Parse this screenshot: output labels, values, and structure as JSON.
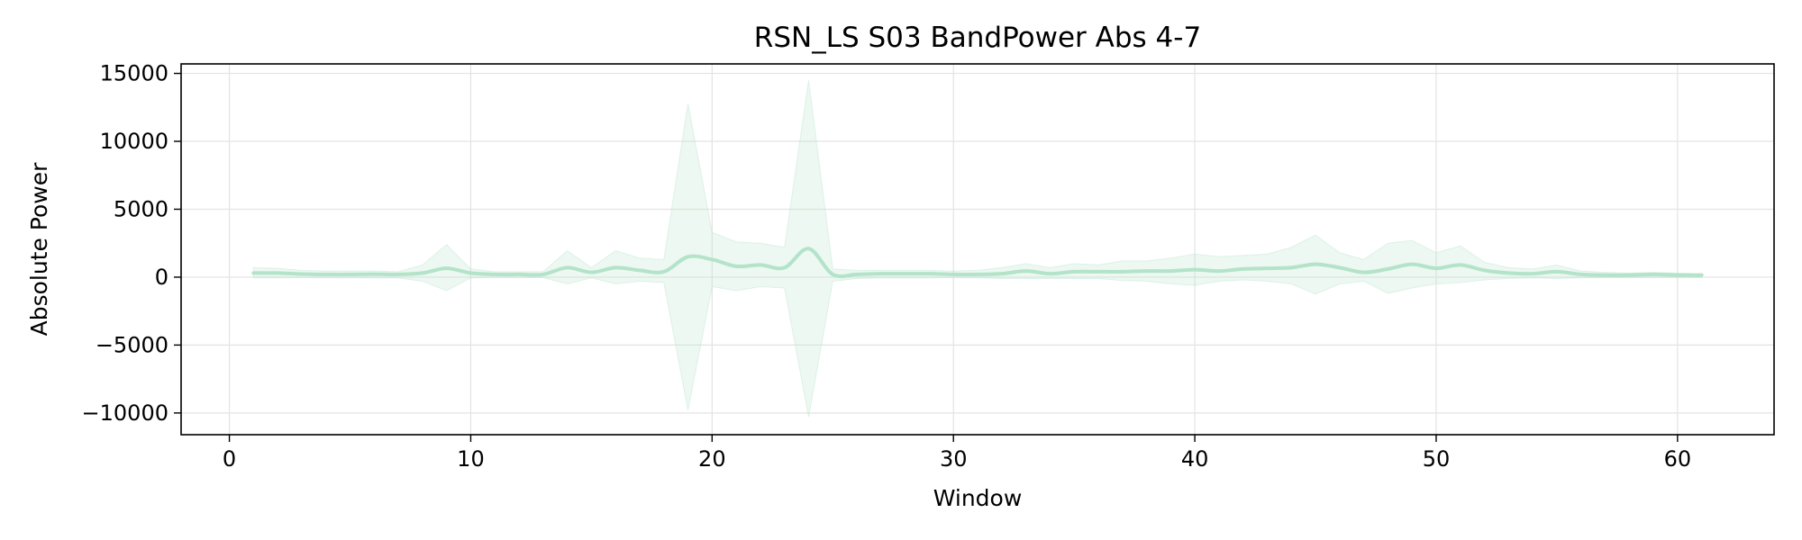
{
  "chart_data": {
    "type": "line",
    "title": "RSN_LS S03 BandPower Abs 4-7",
    "xlabel": "Window",
    "ylabel": "Absolute Power",
    "xlim": [
      -2,
      64
    ],
    "ylim": [
      -11600,
      15700
    ],
    "x_ticks": [
      0,
      10,
      20,
      30,
      40,
      50,
      60
    ],
    "y_ticks": [
      -10000,
      -5000,
      0,
      5000,
      10000,
      15000
    ],
    "x_tick_labels": [
      "0",
      "10",
      "20",
      "30",
      "40",
      "50",
      "60"
    ],
    "y_tick_labels": [
      "−10000",
      "−5000",
      "0",
      "5000",
      "10000",
      "15000"
    ],
    "grid": true,
    "series": [
      {
        "color": "#b3e3c9",
        "band_color": "#b3e3c9",
        "x": [
          1,
          2,
          3,
          4,
          5,
          6,
          7,
          8,
          9,
          10,
          11,
          12,
          13,
          14,
          15,
          16,
          17,
          18,
          19,
          20,
          21,
          22,
          23,
          24,
          25,
          26,
          27,
          28,
          29,
          30,
          31,
          32,
          33,
          34,
          35,
          36,
          37,
          38,
          39,
          40,
          41,
          42,
          43,
          44,
          45,
          46,
          47,
          48,
          49,
          50,
          51,
          52,
          53,
          54,
          55,
          56,
          57,
          58,
          59,
          60,
          61
        ],
        "mean": [
          300,
          300,
          230,
          200,
          200,
          220,
          200,
          300,
          650,
          300,
          200,
          200,
          200,
          700,
          350,
          700,
          500,
          400,
          1500,
          1300,
          800,
          900,
          700,
          2100,
          200,
          200,
          250,
          250,
          250,
          200,
          200,
          250,
          450,
          250,
          400,
          400,
          400,
          450,
          450,
          550,
          450,
          600,
          650,
          700,
          950,
          700,
          350,
          600,
          950,
          650,
          900,
          500,
          300,
          250,
          400,
          200,
          150,
          150,
          200,
          150,
          150
        ],
        "upper": [
          700,
          650,
          500,
          450,
          450,
          450,
          400,
          900,
          2400,
          600,
          400,
          400,
          400,
          1950,
          700,
          1950,
          1400,
          1300,
          12800,
          3300,
          2600,
          2500,
          2200,
          14500,
          600,
          500,
          500,
          500,
          500,
          450,
          500,
          700,
          1000,
          700,
          1000,
          900,
          1200,
          1200,
          1400,
          1700,
          1500,
          1600,
          1700,
          2200,
          3100,
          1800,
          1300,
          2500,
          2700,
          1800,
          2300,
          1100,
          700,
          600,
          900,
          450,
          350,
          300,
          350,
          300,
          250
        ],
        "lower": [
          -50,
          -50,
          -40,
          -50,
          -50,
          -50,
          -60,
          -300,
          -1000,
          -50,
          -30,
          -40,
          -40,
          -500,
          -50,
          -500,
          -300,
          -400,
          -9800,
          -700,
          -1000,
          -700,
          -800,
          -10300,
          -300,
          -100,
          -50,
          -50,
          -50,
          -40,
          -50,
          -100,
          -100,
          -100,
          -100,
          -100,
          -250,
          -300,
          -500,
          -600,
          -300,
          -200,
          -300,
          -500,
          -1250,
          -500,
          -300,
          -1200,
          -800,
          -500,
          -400,
          -200,
          -100,
          -50,
          -100,
          -50,
          -40,
          -30,
          -40,
          -30,
          -30
        ]
      }
    ]
  }
}
